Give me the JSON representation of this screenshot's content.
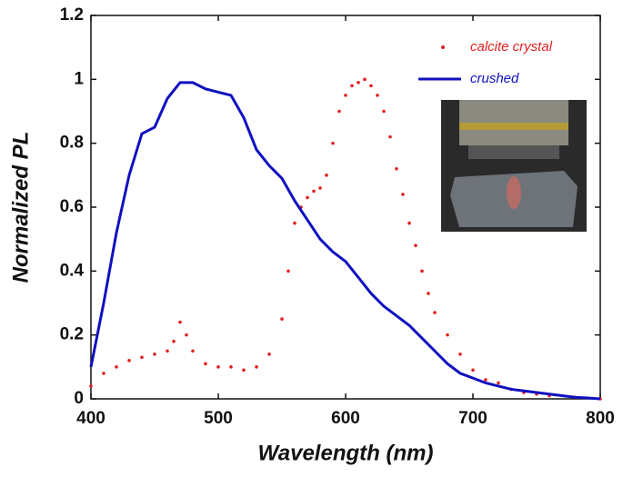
{
  "chart_data": {
    "type": "line",
    "xlabel": "Wavelength (nm)",
    "ylabel": "Normalized PL",
    "xlim": [
      400,
      800
    ],
    "ylim": [
      0,
      1.2
    ],
    "xticks": [
      400,
      500,
      600,
      700,
      800
    ],
    "yticks": [
      0,
      0.2,
      0.4,
      0.6,
      0.8,
      1,
      1.2
    ],
    "legend": "upper right",
    "series": [
      {
        "name": "calcite crystal",
        "type": "scatter",
        "color": "#e02020",
        "x": [
          400,
          410,
          420,
          430,
          440,
          450,
          460,
          465,
          470,
          475,
          480,
          490,
          500,
          510,
          520,
          530,
          540,
          550,
          555,
          560,
          565,
          570,
          575,
          580,
          585,
          590,
          595,
          600,
          605,
          610,
          615,
          620,
          625,
          630,
          635,
          640,
          645,
          650,
          655,
          660,
          665,
          670,
          680,
          690,
          700,
          710,
          720,
          730,
          740,
          750,
          760,
          780,
          800
        ],
        "values": [
          0.04,
          0.08,
          0.1,
          0.12,
          0.13,
          0.14,
          0.15,
          0.18,
          0.24,
          0.2,
          0.15,
          0.11,
          0.1,
          0.1,
          0.09,
          0.1,
          0.14,
          0.25,
          0.4,
          0.55,
          0.6,
          0.63,
          0.65,
          0.66,
          0.7,
          0.8,
          0.9,
          0.95,
          0.98,
          0.99,
          1.0,
          0.98,
          0.95,
          0.9,
          0.82,
          0.72,
          0.64,
          0.55,
          0.48,
          0.4,
          0.33,
          0.27,
          0.2,
          0.14,
          0.09,
          0.06,
          0.05,
          0.03,
          0.02,
          0.015,
          0.01,
          0.005,
          0
        ]
      },
      {
        "name": "crushed",
        "type": "line",
        "color": "#1010c0",
        "x": [
          400,
          405,
          410,
          420,
          430,
          440,
          450,
          460,
          470,
          480,
          490,
          500,
          510,
          520,
          530,
          540,
          550,
          560,
          570,
          580,
          590,
          600,
          610,
          620,
          630,
          640,
          650,
          660,
          670,
          680,
          690,
          700,
          710,
          720,
          730,
          740,
          750,
          760,
          770,
          780,
          790,
          800
        ],
        "values": [
          0.1,
          0.2,
          0.3,
          0.52,
          0.7,
          0.83,
          0.85,
          0.94,
          0.99,
          0.99,
          0.97,
          0.96,
          0.95,
          0.88,
          0.78,
          0.73,
          0.69,
          0.62,
          0.56,
          0.5,
          0.46,
          0.43,
          0.38,
          0.33,
          0.29,
          0.26,
          0.23,
          0.19,
          0.15,
          0.11,
          0.08,
          0.065,
          0.05,
          0.04,
          0.03,
          0.025,
          0.02,
          0.015,
          0.01,
          0.005,
          0.003,
          0
        ]
      }
    ]
  }
}
